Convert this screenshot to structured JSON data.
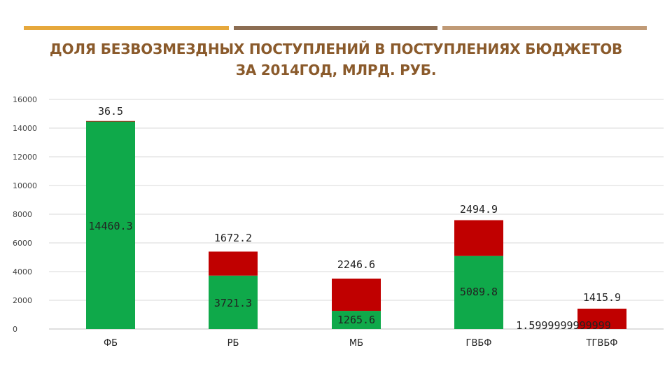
{
  "title": {
    "line1": "ДОЛЯ БЕЗВОЗМЕЗДНЫХ ПОСТУПЛЕНИЙ В ПОСТУПЛЕНИЯХ БЮДЖЕТОВ",
    "line2": "ЗА 2014ГОД, МЛРД. РУБ."
  },
  "colors": {
    "series_1": "#0fa94a",
    "series_2": "#c00000",
    "rule_1": "#e6a83c",
    "rule_2": "#8c6d52",
    "rule_3": "#c09a76",
    "title": "#8a5a2b"
  },
  "chart_data": {
    "type": "bar",
    "stacked": true,
    "categories": [
      "ФБ",
      "РБ",
      "МБ",
      "ГВБФ",
      "ТГВБФ"
    ],
    "series": [
      {
        "values": [
          14460.3,
          3721.3,
          1265.6,
          5089.8,
          1.5999999999999
        ]
      },
      {
        "values": [
          36.5,
          1672.2,
          2246.6,
          2494.9,
          1415.9
        ]
      }
    ],
    "data_labels": [
      [
        "14460.3",
        "3721.3",
        "1265.6",
        "5089.8",
        "1.5999999999999"
      ],
      [
        "36.5",
        "1672.2",
        "2246.6",
        "2494.9",
        "1415.9"
      ]
    ],
    "ylim": [
      0,
      16000
    ],
    "yticks": [
      "0",
      "2000",
      "4000",
      "6000",
      "8000",
      "10000",
      "12000",
      "14000",
      "16000"
    ],
    "grid": true,
    "legend": "none"
  }
}
